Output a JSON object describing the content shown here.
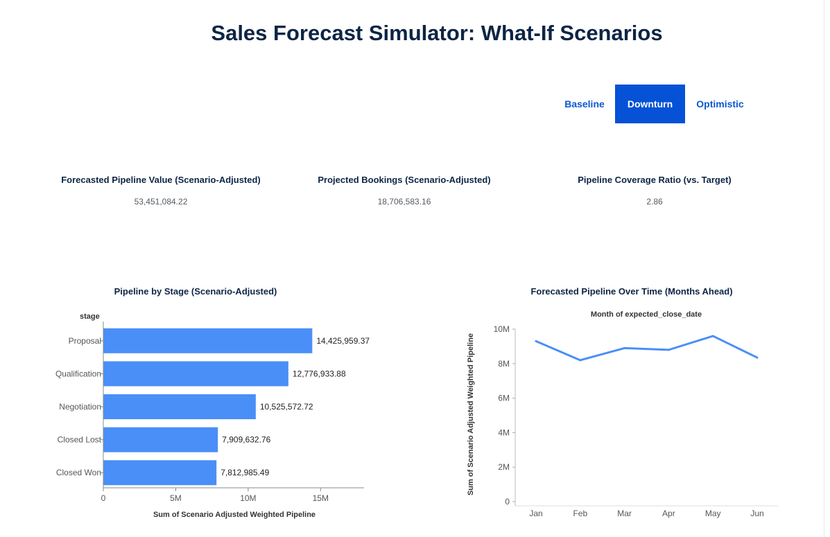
{
  "page": {
    "title": "Sales Forecast Simulator: What-If Scenarios"
  },
  "scenario_tabs": {
    "items": [
      {
        "label": "Baseline",
        "active": false
      },
      {
        "label": "Downturn",
        "active": true
      },
      {
        "label": "Optimistic",
        "active": false
      }
    ]
  },
  "kpis": [
    {
      "label": "Forecasted Pipeline Value (Scenario-Adjusted)",
      "value": "53,451,084.22"
    },
    {
      "label": "Projected Bookings (Scenario-Adjusted)",
      "value": "18,706,583.16"
    },
    {
      "label": "Pipeline Coverage Ratio (vs. Target)",
      "value": "2.86"
    }
  ],
  "colors": {
    "accent": "#4a8ff7",
    "active_tab": "#0552d6",
    "title": "#0d2545"
  },
  "chart_data": [
    {
      "type": "bar",
      "orientation": "horizontal",
      "title": "Pipeline by Stage (Scenario-Adjusted)",
      "ylabel": "stage",
      "xlabel": "Sum of Scenario Adjusted Weighted Pipeline",
      "categories": [
        "Proposal",
        "Qualification",
        "Negotiation",
        "Closed Lost",
        "Closed Won"
      ],
      "values": [
        14425959.37,
        12776933.88,
        10525572.72,
        7909632.76,
        7812985.49
      ],
      "value_labels": [
        "14,425,959.37",
        "12,776,933.88",
        "10,525,572.72",
        "7,909,632.76",
        "7,812,985.49"
      ],
      "xlim": [
        0,
        18000000
      ],
      "ticks": [
        0,
        5000000,
        10000000,
        15000000
      ],
      "tick_labels": [
        "0",
        "5M",
        "10M",
        "15M"
      ]
    },
    {
      "type": "line",
      "title": "Forecasted Pipeline Over Time (Months Ahead)",
      "subtitle": "Month of expected_close_date",
      "ylabel": "Sum of Scenario Adjusted Weighted Pipeline",
      "categories": [
        "Jan",
        "Feb",
        "Mar",
        "Apr",
        "May",
        "Jun"
      ],
      "values": [
        9300000,
        8200000,
        8900000,
        8800000,
        9600000,
        8350000
      ],
      "ylim": [
        0,
        10000000
      ],
      "ticks": [
        0,
        2000000,
        4000000,
        6000000,
        8000000,
        10000000
      ],
      "tick_labels": [
        "0",
        "2M",
        "4M",
        "6M",
        "8M",
        "10M"
      ]
    }
  ]
}
